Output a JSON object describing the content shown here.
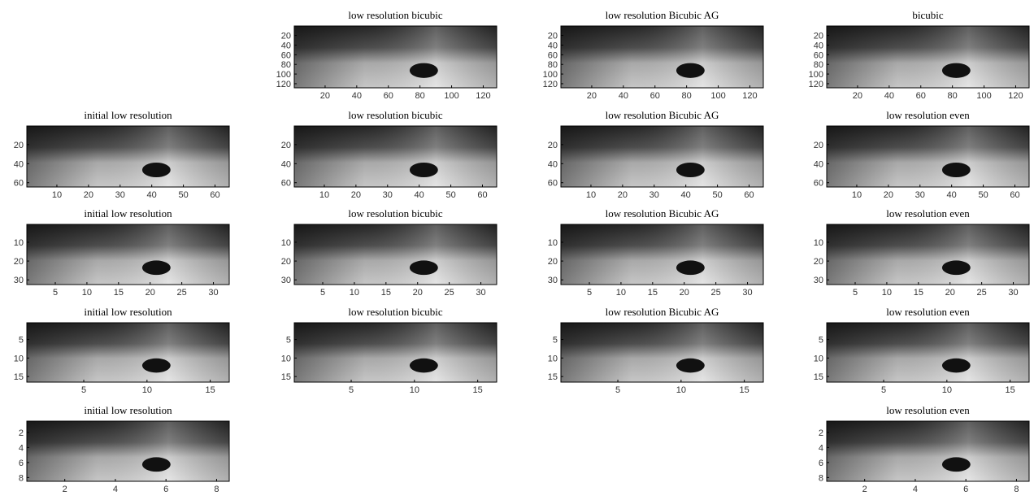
{
  "panels": [
    {
      "title": "low resolution bicubic",
      "xlim": [
        0.5,
        128.5
      ],
      "ylim": [
        0.5,
        128.5
      ],
      "xticks": [
        20,
        40,
        60,
        80,
        100,
        120
      ],
      "yticks": [
        20,
        40,
        60,
        80,
        100,
        120
      ]
    },
    {
      "title": "low resolution Bicubic AG",
      "xlim": [
        0.5,
        128.5
      ],
      "ylim": [
        0.5,
        128.5
      ],
      "xticks": [
        20,
        40,
        60,
        80,
        100,
        120
      ],
      "yticks": [
        20,
        40,
        60,
        80,
        100,
        120
      ]
    },
    {
      "title": "bicubic",
      "xlim": [
        0.5,
        128.5
      ],
      "ylim": [
        0.5,
        128.5
      ],
      "xticks": [
        20,
        40,
        60,
        80,
        100,
        120
      ],
      "yticks": [
        20,
        40,
        60,
        80,
        100,
        120
      ]
    },
    {
      "title": "initial low resolution",
      "xlim": [
        0.5,
        64.5
      ],
      "ylim": [
        0.5,
        64.5
      ],
      "xticks": [
        10,
        20,
        30,
        40,
        50,
        60
      ],
      "yticks": [
        20,
        40,
        60
      ]
    },
    {
      "title": "low resolution bicubic",
      "xlim": [
        0.5,
        64.5
      ],
      "ylim": [
        0.5,
        64.5
      ],
      "xticks": [
        10,
        20,
        30,
        40,
        50,
        60
      ],
      "yticks": [
        20,
        40,
        60
      ]
    },
    {
      "title": "low resolution Bicubic AG",
      "xlim": [
        0.5,
        64.5
      ],
      "ylim": [
        0.5,
        64.5
      ],
      "xticks": [
        10,
        20,
        30,
        40,
        50,
        60
      ],
      "yticks": [
        20,
        40,
        60
      ]
    },
    {
      "title": "low resolution even",
      "xlim": [
        0.5,
        64.5
      ],
      "ylim": [
        0.5,
        64.5
      ],
      "xticks": [
        10,
        20,
        30,
        40,
        50,
        60
      ],
      "yticks": [
        20,
        40,
        60
      ]
    },
    {
      "title": "initial low resolution",
      "xlim": [
        0.5,
        32.5
      ],
      "ylim": [
        0.5,
        32.5
      ],
      "xticks": [
        5,
        10,
        15,
        20,
        25,
        30
      ],
      "yticks": [
        10,
        20,
        30
      ]
    },
    {
      "title": "low resolution bicubic",
      "xlim": [
        0.5,
        32.5
      ],
      "ylim": [
        0.5,
        32.5
      ],
      "xticks": [
        5,
        10,
        15,
        20,
        25,
        30
      ],
      "yticks": [
        10,
        20,
        30
      ]
    },
    {
      "title": "low resolution Bicubic AG",
      "xlim": [
        0.5,
        32.5
      ],
      "ylim": [
        0.5,
        32.5
      ],
      "xticks": [
        5,
        10,
        15,
        20,
        25,
        30
      ],
      "yticks": [
        10,
        20,
        30
      ]
    },
    {
      "title": "low resolution even",
      "xlim": [
        0.5,
        32.5
      ],
      "ylim": [
        0.5,
        32.5
      ],
      "xticks": [
        5,
        10,
        15,
        20,
        25,
        30
      ],
      "yticks": [
        10,
        20,
        30
      ]
    },
    {
      "title": "initial low resolution",
      "xlim": [
        0.5,
        16.5
      ],
      "ylim": [
        0.5,
        16.5
      ],
      "xticks": [
        5,
        10,
        15
      ],
      "yticks": [
        5,
        10,
        15
      ]
    },
    {
      "title": "low resolution bicubic",
      "xlim": [
        0.5,
        16.5
      ],
      "ylim": [
        0.5,
        16.5
      ],
      "xticks": [
        5,
        10,
        15
      ],
      "yticks": [
        5,
        10,
        15
      ]
    },
    {
      "title": "low resolution Bicubic AG",
      "xlim": [
        0.5,
        16.5
      ],
      "ylim": [
        0.5,
        16.5
      ],
      "xticks": [
        5,
        10,
        15
      ],
      "yticks": [
        5,
        10,
        15
      ]
    },
    {
      "title": "low resolution even",
      "xlim": [
        0.5,
        16.5
      ],
      "ylim": [
        0.5,
        16.5
      ],
      "xticks": [
        5,
        10,
        15
      ],
      "yticks": [
        5,
        10,
        15
      ]
    },
    {
      "title": "initial low resolution",
      "xlim": [
        0.5,
        8.5
      ],
      "ylim": [
        0.5,
        8.5
      ],
      "xticks": [
        2,
        4,
        6,
        8
      ],
      "yticks": [
        2,
        4,
        6,
        8
      ]
    },
    {
      "title": "low resolution even",
      "xlim": [
        0.5,
        8.5
      ],
      "ylim": [
        0.5,
        8.5
      ],
      "xticks": [
        2,
        4,
        6,
        8
      ],
      "yticks": [
        2,
        4,
        6,
        8
      ]
    }
  ]
}
